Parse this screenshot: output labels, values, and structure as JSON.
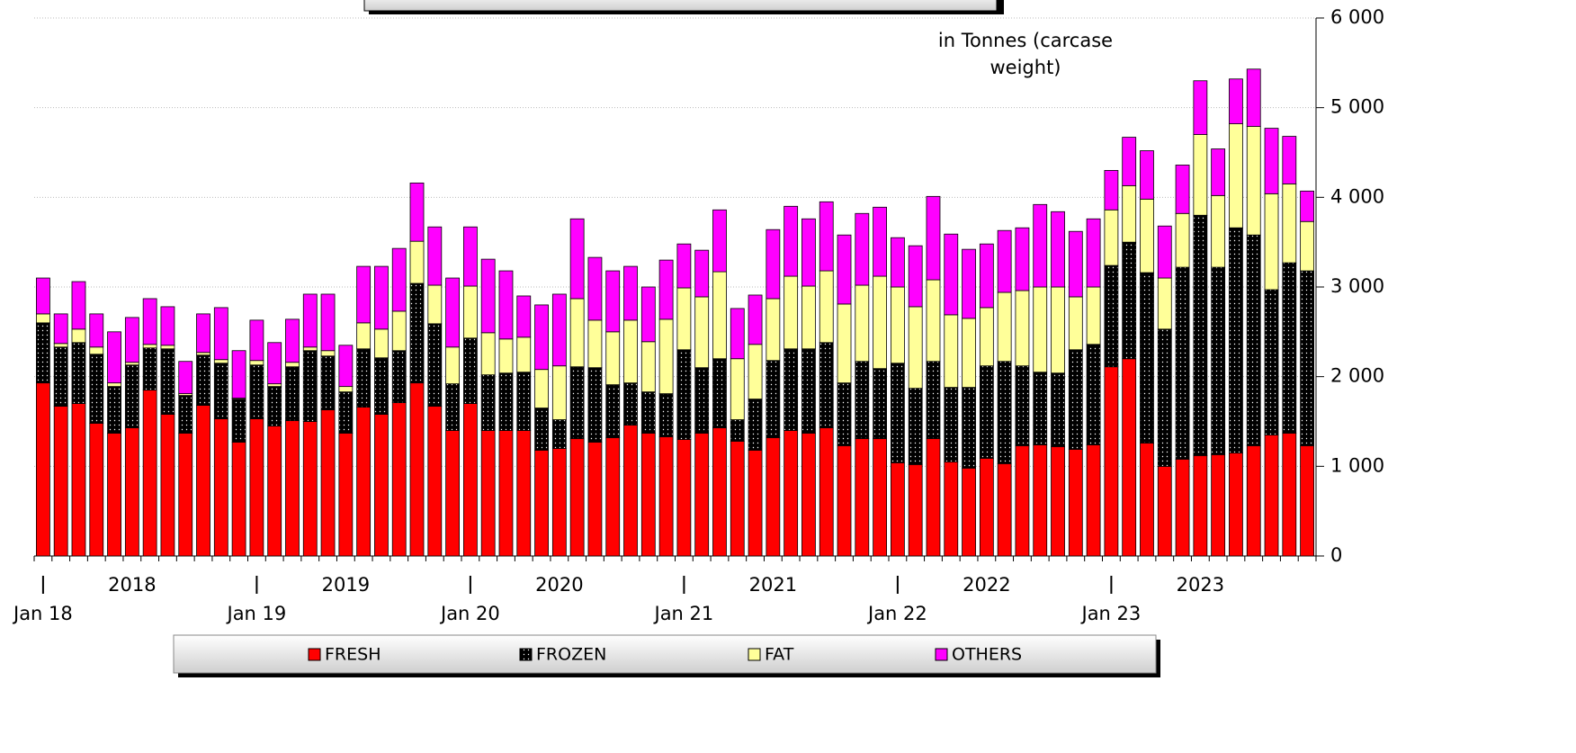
{
  "chart_data": {
    "type": "stacked_bar",
    "annotation": "in Tonnes (carcase weight)",
    "categories": [
      "Jan 18",
      null,
      null,
      null,
      null,
      null,
      null,
      null,
      null,
      null,
      null,
      null,
      "Jan 19",
      null,
      null,
      null,
      null,
      null,
      null,
      null,
      null,
      null,
      null,
      null,
      "Jan 20",
      null,
      null,
      null,
      null,
      null,
      null,
      null,
      null,
      null,
      null,
      null,
      "Jan 21",
      null,
      null,
      null,
      null,
      null,
      null,
      null,
      null,
      null,
      null,
      null,
      "Jan 22",
      null,
      null,
      null,
      null,
      null,
      null,
      null,
      null,
      null,
      null,
      null,
      "Jan 23",
      null,
      null,
      null,
      null,
      null,
      null,
      null,
      null,
      null,
      null,
      null
    ],
    "year_labels": [
      "2018",
      "2019",
      "2020",
      "2021",
      "2022",
      "2023"
    ],
    "series": [
      {
        "name": "FRESH",
        "color": "#ff0000",
        "values": [
          1930,
          1670,
          1700,
          1480,
          1370,
          1430,
          1850,
          1580,
          1370,
          1680,
          1530,
          1270,
          1530,
          1450,
          1510,
          1500,
          1630,
          1370,
          1660,
          1580,
          1710,
          1930,
          1670,
          1400,
          1700,
          1400,
          1400,
          1400,
          1180,
          1200,
          1310,
          1270,
          1320,
          1460,
          1370,
          1330,
          1300,
          1370,
          1430,
          1280,
          1180,
          1320,
          1400,
          1370,
          1430,
          1230,
          1310,
          1310,
          1040,
          1020,
          1310,
          1050,
          980,
          1090,
          1030,
          1230,
          1240,
          1220,
          1190,
          1240,
          2110,
          2200,
          1260,
          1000,
          1080,
          1120,
          1130,
          1150,
          1230,
          1350,
          1370,
          1230
        ]
      },
      {
        "name": "FROZEN",
        "color": "#000000",
        "values": [
          670,
          660,
          680,
          770,
          520,
          700,
          470,
          730,
          420,
          560,
          620,
          480,
          600,
          440,
          600,
          790,
          600,
          460,
          650,
          630,
          580,
          1110,
          920,
          520,
          730,
          620,
          640,
          650,
          470,
          320,
          800,
          830,
          590,
          470,
          460,
          480,
          1000,
          730,
          770,
          240,
          570,
          860,
          910,
          940,
          950,
          700,
          860,
          780,
          1110,
          850,
          860,
          830,
          900,
          1030,
          1140,
          890,
          810,
          820,
          1110,
          1120,
          1130,
          1300,
          1900,
          1530,
          2140,
          2680,
          2090,
          2510,
          2350,
          1620,
          1900,
          1950
        ]
      },
      {
        "name": "FAT",
        "color": "#ffff99",
        "values": [
          100,
          40,
          150,
          80,
          40,
          30,
          40,
          40,
          20,
          30,
          40,
          10,
          50,
          30,
          50,
          40,
          60,
          60,
          290,
          320,
          440,
          470,
          430,
          410,
          580,
          470,
          380,
          390,
          430,
          600,
          760,
          530,
          590,
          700,
          560,
          830,
          690,
          790,
          970,
          680,
          610,
          690,
          810,
          700,
          800,
          880,
          850,
          1030,
          850,
          910,
          910,
          810,
          770,
          650,
          770,
          840,
          950,
          960,
          590,
          640,
          620,
          630,
          820,
          570,
          600,
          900,
          800,
          1160,
          1210,
          1070,
          880,
          550
        ]
      },
      {
        "name": "OTHERS",
        "color": "#ff00ff",
        "values": [
          400,
          330,
          530,
          370,
          570,
          500,
          510,
          430,
          360,
          430,
          580,
          530,
          450,
          460,
          480,
          590,
          630,
          460,
          630,
          700,
          700,
          650,
          650,
          770,
          660,
          820,
          760,
          460,
          720,
          800,
          890,
          700,
          680,
          600,
          610,
          660,
          490,
          520,
          690,
          560,
          550,
          770,
          780,
          750,
          770,
          770,
          800,
          770,
          550,
          680,
          930,
          900,
          770,
          710,
          690,
          700,
          920,
          840,
          730,
          760,
          440,
          540,
          540,
          580,
          540,
          600,
          520,
          500,
          640,
          730,
          530,
          340
        ]
      }
    ],
    "ylim": [
      0,
      6000
    ],
    "yticks": [
      0,
      {
        "value": 1000,
        "label": "1 000"
      },
      {
        "value": 2000,
        "label": "2 000"
      },
      {
        "value": 3000,
        "label": "3 000"
      },
      {
        "value": 4000,
        "label": "4 000"
      },
      {
        "value": 5000,
        "label": "5 000"
      },
      {
        "value": 6000,
        "label": "6 000"
      }
    ],
    "grid": true,
    "legend": "bottom"
  }
}
